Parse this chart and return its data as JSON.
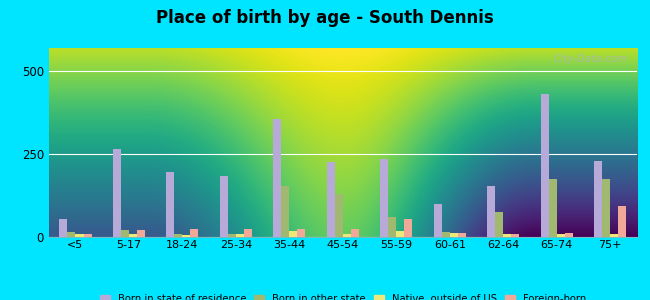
{
  "title": "Place of birth by age - South Dennis",
  "categories": [
    "<5",
    "5-17",
    "18-24",
    "25-34",
    "35-44",
    "45-54",
    "55-59",
    "60-61",
    "62-64",
    "65-74",
    "75+"
  ],
  "series": {
    "Born in state of residence": [
      55,
      265,
      195,
      185,
      355,
      225,
      235,
      100,
      155,
      430,
      230
    ],
    "Born in other state": [
      15,
      20,
      8,
      8,
      155,
      130,
      60,
      15,
      75,
      175,
      175
    ],
    "Native, outside of US": [
      8,
      8,
      5,
      8,
      18,
      8,
      18,
      12,
      8,
      8,
      8
    ],
    "Foreign-born": [
      8,
      20,
      25,
      25,
      25,
      25,
      55,
      12,
      8,
      12,
      95
    ]
  },
  "colors": {
    "Born in state of residence": "#b8aad8",
    "Born in other state": "#a0b870",
    "Native, outside of US": "#ede87a",
    "Foreign-born": "#f0a898"
  },
  "ylim": [
    0,
    570
  ],
  "yticks": [
    0,
    250,
    500
  ],
  "bg_top": "#f5faf5",
  "bg_bottom": "#c8e8b0",
  "outer_background": "#00e5ff",
  "grid_color": "#e0e8e0",
  "bar_width": 0.15,
  "legend_labels": [
    "Born in state of residence",
    "Born in other state",
    "Native, outside of US",
    "Foreign-born"
  ]
}
